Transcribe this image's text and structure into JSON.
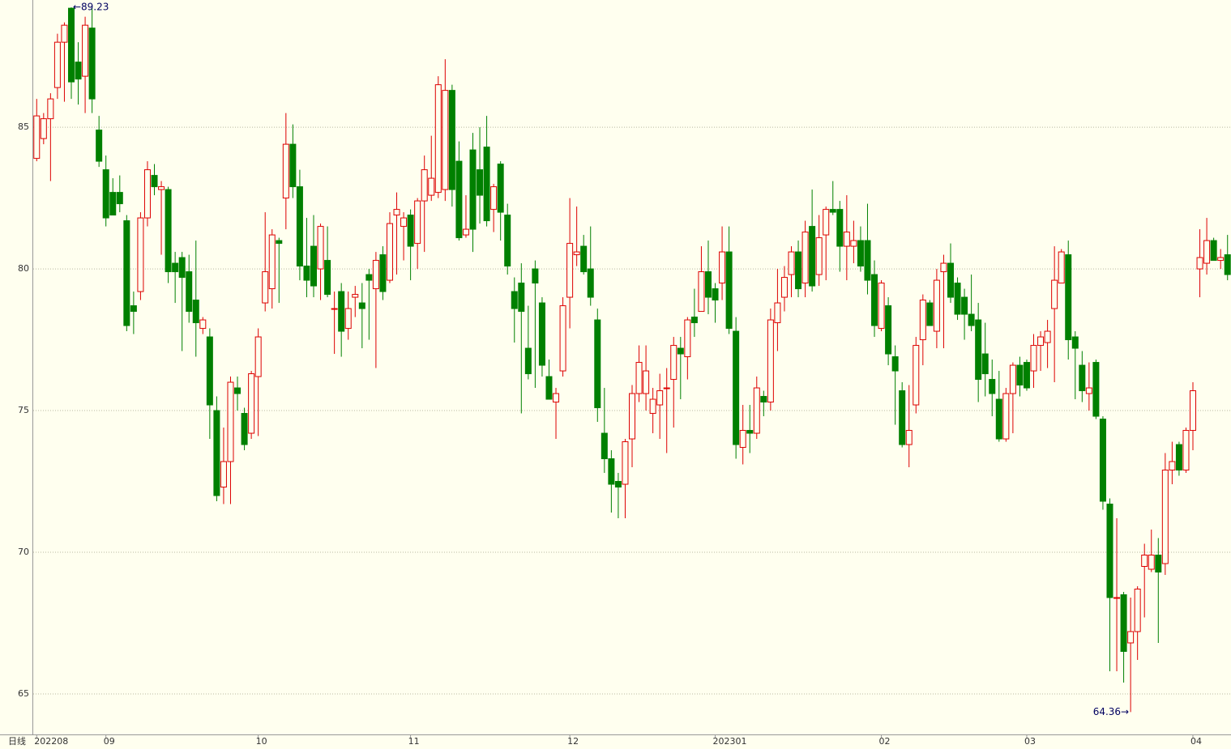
{
  "chart_data": {
    "type": "candlestick",
    "period_label": "日线",
    "up_color": "#dd0000",
    "down_color": "#008000",
    "background": "#ffffef",
    "grid": true,
    "ylim": [
      63.57,
      89.49
    ],
    "yticks": [
      65,
      70,
      75,
      80,
      85
    ],
    "x_labels": [
      {
        "index": 0,
        "label": "202208"
      },
      {
        "index": 10,
        "label": "09"
      },
      {
        "index": 32,
        "label": "10"
      },
      {
        "index": 54,
        "label": "11"
      },
      {
        "index": 77,
        "label": "12"
      },
      {
        "index": 98,
        "label": "202301"
      },
      {
        "index": 122,
        "label": "02"
      },
      {
        "index": 143,
        "label": "03"
      },
      {
        "index": 167,
        "label": "04"
      }
    ],
    "annotations": [
      {
        "index": 5,
        "value": 89.23,
        "label": "←89.23",
        "side": "right"
      },
      {
        "index": 158,
        "value": 64.36,
        "label": "64.36→",
        "side": "left"
      }
    ],
    "candles": [
      {
        "o": 83.9,
        "h": 86.0,
        "l": 83.8,
        "c": 85.4
      },
      {
        "o": 84.6,
        "h": 85.5,
        "l": 84.4,
        "c": 85.3
      },
      {
        "o": 85.3,
        "h": 86.2,
        "l": 83.1,
        "c": 86.0
      },
      {
        "o": 86.4,
        "h": 88.3,
        "l": 86.0,
        "c": 88.0
      },
      {
        "o": 88.0,
        "h": 88.7,
        "l": 85.9,
        "c": 88.6
      },
      {
        "o": 89.2,
        "h": 89.23,
        "l": 86.0,
        "c": 86.6
      },
      {
        "o": 87.3,
        "h": 88.0,
        "l": 85.8,
        "c": 86.7
      },
      {
        "o": 86.8,
        "h": 88.9,
        "l": 85.5,
        "c": 88.6
      },
      {
        "o": 88.5,
        "h": 89.2,
        "l": 85.5,
        "c": 86.0
      },
      {
        "o": 84.9,
        "h": 85.4,
        "l": 83.6,
        "c": 83.8
      },
      {
        "o": 83.5,
        "h": 84.0,
        "l": 81.5,
        "c": 81.8
      },
      {
        "o": 82.7,
        "h": 83.2,
        "l": 81.9,
        "c": 81.9
      },
      {
        "o": 82.7,
        "h": 83.3,
        "l": 82.0,
        "c": 82.3
      },
      {
        "o": 81.7,
        "h": 81.9,
        "l": 77.8,
        "c": 78.0
      },
      {
        "o": 78.7,
        "h": 79.2,
        "l": 77.7,
        "c": 78.5
      },
      {
        "o": 79.2,
        "h": 82.0,
        "l": 78.9,
        "c": 81.8
      },
      {
        "o": 81.8,
        "h": 83.8,
        "l": 81.5,
        "c": 83.5
      },
      {
        "o": 83.3,
        "h": 83.7,
        "l": 82.6,
        "c": 82.9
      },
      {
        "o": 82.8,
        "h": 83.1,
        "l": 80.5,
        "c": 82.9
      },
      {
        "o": 82.8,
        "h": 82.9,
        "l": 79.5,
        "c": 79.9
      },
      {
        "o": 80.2,
        "h": 80.6,
        "l": 78.8,
        "c": 79.9
      },
      {
        "o": 80.4,
        "h": 80.6,
        "l": 77.1,
        "c": 79.7
      },
      {
        "o": 79.9,
        "h": 80.5,
        "l": 78.1,
        "c": 78.5
      },
      {
        "o": 78.9,
        "h": 81.0,
        "l": 76.9,
        "c": 78.1
      },
      {
        "o": 77.9,
        "h": 78.3,
        "l": 77.7,
        "c": 78.2
      },
      {
        "o": 77.6,
        "h": 77.9,
        "l": 74.0,
        "c": 75.2
      },
      {
        "o": 75.0,
        "h": 75.5,
        "l": 71.8,
        "c": 72.0
      },
      {
        "o": 72.3,
        "h": 74.4,
        "l": 71.7,
        "c": 73.2
      },
      {
        "o": 73.2,
        "h": 76.2,
        "l": 71.7,
        "c": 76.0
      },
      {
        "o": 75.8,
        "h": 76.2,
        "l": 75.0,
        "c": 75.6
      },
      {
        "o": 74.9,
        "h": 75.1,
        "l": 73.6,
        "c": 73.8
      },
      {
        "o": 74.2,
        "h": 76.4,
        "l": 74.0,
        "c": 76.3
      },
      {
        "o": 76.2,
        "h": 77.9,
        "l": 74.1,
        "c": 77.6
      },
      {
        "o": 78.8,
        "h": 82.0,
        "l": 78.5,
        "c": 79.9
      },
      {
        "o": 79.3,
        "h": 81.4,
        "l": 78.6,
        "c": 81.2
      },
      {
        "o": 81.0,
        "h": 81.1,
        "l": 78.8,
        "c": 80.9
      },
      {
        "o": 82.5,
        "h": 85.5,
        "l": 81.4,
        "c": 84.4
      },
      {
        "o": 84.4,
        "h": 85.1,
        "l": 82.5,
        "c": 82.9
      },
      {
        "o": 82.9,
        "h": 83.5,
        "l": 79.6,
        "c": 80.1
      },
      {
        "o": 80.1,
        "h": 81.8,
        "l": 79.0,
        "c": 79.6
      },
      {
        "o": 80.8,
        "h": 81.9,
        "l": 79.0,
        "c": 79.4
      },
      {
        "o": 80.0,
        "h": 81.6,
        "l": 78.9,
        "c": 81.5
      },
      {
        "o": 80.3,
        "h": 81.5,
        "l": 79.0,
        "c": 79.1
      },
      {
        "o": 78.6,
        "h": 79.2,
        "l": 77.0,
        "c": 78.6
      },
      {
        "o": 79.2,
        "h": 79.5,
        "l": 76.9,
        "c": 77.8
      },
      {
        "o": 77.9,
        "h": 79.2,
        "l": 77.5,
        "c": 78.6
      },
      {
        "o": 79.0,
        "h": 79.4,
        "l": 78.3,
        "c": 79.1
      },
      {
        "o": 78.8,
        "h": 79.5,
        "l": 77.2,
        "c": 78.6
      },
      {
        "o": 79.8,
        "h": 80.0,
        "l": 77.5,
        "c": 79.6
      },
      {
        "o": 79.3,
        "h": 80.6,
        "l": 76.5,
        "c": 80.3
      },
      {
        "o": 80.5,
        "h": 80.8,
        "l": 78.9,
        "c": 79.2
      },
      {
        "o": 79.6,
        "h": 82.0,
        "l": 79.5,
        "c": 81.6
      },
      {
        "o": 81.9,
        "h": 82.7,
        "l": 79.8,
        "c": 82.1
      },
      {
        "o": 81.5,
        "h": 82.0,
        "l": 80.3,
        "c": 81.8
      },
      {
        "o": 81.9,
        "h": 82.1,
        "l": 79.6,
        "c": 80.8
      },
      {
        "o": 80.9,
        "h": 82.5,
        "l": 80.0,
        "c": 82.4
      },
      {
        "o": 82.4,
        "h": 84.0,
        "l": 80.6,
        "c": 83.5
      },
      {
        "o": 82.6,
        "h": 84.7,
        "l": 82.4,
        "c": 83.2
      },
      {
        "o": 82.7,
        "h": 86.8,
        "l": 82.5,
        "c": 86.5
      },
      {
        "o": 82.8,
        "h": 87.4,
        "l": 82.4,
        "c": 86.3
      },
      {
        "o": 86.3,
        "h": 86.5,
        "l": 82.2,
        "c": 82.8
      },
      {
        "o": 83.8,
        "h": 84.5,
        "l": 81.0,
        "c": 81.1
      },
      {
        "o": 81.2,
        "h": 82.6,
        "l": 81.1,
        "c": 81.4
      },
      {
        "o": 84.2,
        "h": 84.8,
        "l": 80.6,
        "c": 81.4
      },
      {
        "o": 83.5,
        "h": 85.0,
        "l": 81.6,
        "c": 82.6
      },
      {
        "o": 84.3,
        "h": 85.4,
        "l": 81.5,
        "c": 81.7
      },
      {
        "o": 82.1,
        "h": 83.0,
        "l": 81.3,
        "c": 82.9
      },
      {
        "o": 83.7,
        "h": 83.8,
        "l": 81.0,
        "c": 82.0
      },
      {
        "o": 81.9,
        "h": 82.3,
        "l": 79.8,
        "c": 80.1
      },
      {
        "o": 79.2,
        "h": 79.7,
        "l": 77.4,
        "c": 78.6
      },
      {
        "o": 79.5,
        "h": 80.2,
        "l": 74.9,
        "c": 78.5
      },
      {
        "o": 77.2,
        "h": 78.7,
        "l": 76.1,
        "c": 76.3
      },
      {
        "o": 80.0,
        "h": 80.3,
        "l": 75.8,
        "c": 79.5
      },
      {
        "o": 78.8,
        "h": 79.0,
        "l": 76.2,
        "c": 76.6
      },
      {
        "o": 76.2,
        "h": 76.8,
        "l": 75.4,
        "c": 75.4
      },
      {
        "o": 75.3,
        "h": 75.8,
        "l": 74.0,
        "c": 75.6
      },
      {
        "o": 76.4,
        "h": 79.0,
        "l": 76.2,
        "c": 78.7
      },
      {
        "o": 79.0,
        "h": 82.5,
        "l": 77.9,
        "c": 80.9
      },
      {
        "o": 80.5,
        "h": 82.2,
        "l": 80.1,
        "c": 80.6
      },
      {
        "o": 80.8,
        "h": 81.2,
        "l": 79.8,
        "c": 79.9
      },
      {
        "o": 80.0,
        "h": 81.5,
        "l": 78.7,
        "c": 79.0
      },
      {
        "o": 78.2,
        "h": 78.6,
        "l": 74.6,
        "c": 75.1
      },
      {
        "o": 74.2,
        "h": 75.8,
        "l": 72.8,
        "c": 73.3
      },
      {
        "o": 73.3,
        "h": 73.6,
        "l": 71.4,
        "c": 72.4
      },
      {
        "o": 72.5,
        "h": 72.8,
        "l": 71.2,
        "c": 72.3
      },
      {
        "o": 72.4,
        "h": 74.0,
        "l": 71.2,
        "c": 73.9
      },
      {
        "o": 74.0,
        "h": 75.9,
        "l": 73.0,
        "c": 75.6
      },
      {
        "o": 75.6,
        "h": 77.3,
        "l": 75.3,
        "c": 76.7
      },
      {
        "o": 75.6,
        "h": 77.3,
        "l": 75.0,
        "c": 76.4
      },
      {
        "o": 74.9,
        "h": 75.8,
        "l": 74.2,
        "c": 75.4
      },
      {
        "o": 75.2,
        "h": 76.3,
        "l": 74.0,
        "c": 75.7
      },
      {
        "o": 75.8,
        "h": 76.5,
        "l": 73.5,
        "c": 75.8
      },
      {
        "o": 76.1,
        "h": 77.6,
        "l": 74.4,
        "c": 77.3
      },
      {
        "o": 77.2,
        "h": 77.6,
        "l": 75.4,
        "c": 77.0
      },
      {
        "o": 76.9,
        "h": 78.3,
        "l": 76.1,
        "c": 78.2
      },
      {
        "o": 78.3,
        "h": 79.3,
        "l": 77.6,
        "c": 78.1
      },
      {
        "o": 78.5,
        "h": 80.8,
        "l": 78.5,
        "c": 79.9
      },
      {
        "o": 79.9,
        "h": 81.0,
        "l": 78.4,
        "c": 79.0
      },
      {
        "o": 79.3,
        "h": 79.5,
        "l": 78.1,
        "c": 78.9
      },
      {
        "o": 79.5,
        "h": 81.5,
        "l": 78.9,
        "c": 80.6
      },
      {
        "o": 80.6,
        "h": 81.5,
        "l": 77.7,
        "c": 77.9
      },
      {
        "o": 77.8,
        "h": 78.3,
        "l": 73.3,
        "c": 73.8
      },
      {
        "o": 73.7,
        "h": 75.2,
        "l": 73.1,
        "c": 74.3
      },
      {
        "o": 74.3,
        "h": 75.2,
        "l": 73.5,
        "c": 74.2
      },
      {
        "o": 74.2,
        "h": 76.2,
        "l": 74.0,
        "c": 75.8
      },
      {
        "o": 75.5,
        "h": 75.7,
        "l": 74.8,
        "c": 75.3
      },
      {
        "o": 75.3,
        "h": 78.6,
        "l": 75.0,
        "c": 78.2
      },
      {
        "o": 78.1,
        "h": 80.0,
        "l": 77.1,
        "c": 78.8
      },
      {
        "o": 79.0,
        "h": 80.1,
        "l": 78.5,
        "c": 79.7
      },
      {
        "o": 79.8,
        "h": 80.8,
        "l": 79.0,
        "c": 80.6
      },
      {
        "o": 80.6,
        "h": 81.0,
        "l": 79.0,
        "c": 79.3
      },
      {
        "o": 79.5,
        "h": 81.7,
        "l": 79.0,
        "c": 81.3
      },
      {
        "o": 81.5,
        "h": 82.8,
        "l": 79.2,
        "c": 79.4
      },
      {
        "o": 79.8,
        "h": 81.9,
        "l": 79.4,
        "c": 81.1
      },
      {
        "o": 81.2,
        "h": 82.2,
        "l": 79.6,
        "c": 82.1
      },
      {
        "o": 82.1,
        "h": 83.1,
        "l": 81.9,
        "c": 82.0
      },
      {
        "o": 82.1,
        "h": 82.4,
        "l": 79.9,
        "c": 80.8
      },
      {
        "o": 80.8,
        "h": 82.6,
        "l": 79.6,
        "c": 81.3
      },
      {
        "o": 80.8,
        "h": 81.7,
        "l": 80.2,
        "c": 81.0
      },
      {
        "o": 81.0,
        "h": 81.5,
        "l": 79.9,
        "c": 80.1
      },
      {
        "o": 81.0,
        "h": 82.3,
        "l": 79.1,
        "c": 79.6
      },
      {
        "o": 79.8,
        "h": 80.3,
        "l": 77.6,
        "c": 78.0
      },
      {
        "o": 77.9,
        "h": 79.6,
        "l": 77.8,
        "c": 79.5
      },
      {
        "o": 78.7,
        "h": 79.0,
        "l": 76.6,
        "c": 77.0
      },
      {
        "o": 76.9,
        "h": 77.3,
        "l": 74.5,
        "c": 76.4
      },
      {
        "o": 75.7,
        "h": 76.0,
        "l": 73.7,
        "c": 73.8
      },
      {
        "o": 73.8,
        "h": 75.9,
        "l": 73.0,
        "c": 74.3
      },
      {
        "o": 75.2,
        "h": 77.6,
        "l": 74.9,
        "c": 77.3
      },
      {
        "o": 77.5,
        "h": 79.1,
        "l": 76.6,
        "c": 78.9
      },
      {
        "o": 78.8,
        "h": 78.9,
        "l": 78.0,
        "c": 78.0
      },
      {
        "o": 77.8,
        "h": 80.0,
        "l": 77.2,
        "c": 79.6
      },
      {
        "o": 79.9,
        "h": 80.5,
        "l": 77.2,
        "c": 80.2
      },
      {
        "o": 80.2,
        "h": 80.9,
        "l": 78.8,
        "c": 79.0
      },
      {
        "o": 79.5,
        "h": 79.7,
        "l": 78.2,
        "c": 78.4
      },
      {
        "o": 79.0,
        "h": 79.3,
        "l": 77.5,
        "c": 78.4
      },
      {
        "o": 78.4,
        "h": 79.8,
        "l": 77.8,
        "c": 78.0
      },
      {
        "o": 78.2,
        "h": 78.8,
        "l": 75.3,
        "c": 76.1
      },
      {
        "o": 77.0,
        "h": 78.1,
        "l": 75.5,
        "c": 76.3
      },
      {
        "o": 76.1,
        "h": 76.8,
        "l": 74.8,
        "c": 75.6
      },
      {
        "o": 75.4,
        "h": 76.4,
        "l": 73.9,
        "c": 74.0
      },
      {
        "o": 74.0,
        "h": 75.8,
        "l": 73.9,
        "c": 75.6
      },
      {
        "o": 75.6,
        "h": 76.7,
        "l": 74.2,
        "c": 76.6
      },
      {
        "o": 76.6,
        "h": 76.9,
        "l": 75.5,
        "c": 75.9
      },
      {
        "o": 76.7,
        "h": 76.8,
        "l": 75.7,
        "c": 75.8
      },
      {
        "o": 76.4,
        "h": 77.7,
        "l": 75.8,
        "c": 77.3
      },
      {
        "o": 77.3,
        "h": 77.8,
        "l": 76.4,
        "c": 77.6
      },
      {
        "o": 77.4,
        "h": 78.2,
        "l": 76.5,
        "c": 77.8
      },
      {
        "o": 78.6,
        "h": 80.8,
        "l": 76.0,
        "c": 79.6
      },
      {
        "o": 79.5,
        "h": 80.7,
        "l": 79.5,
        "c": 80.6
      },
      {
        "o": 80.5,
        "h": 81.0,
        "l": 76.8,
        "c": 77.5
      },
      {
        "o": 77.6,
        "h": 77.8,
        "l": 75.4,
        "c": 77.2
      },
      {
        "o": 76.6,
        "h": 77.1,
        "l": 75.3,
        "c": 75.7
      },
      {
        "o": 75.6,
        "h": 76.7,
        "l": 75.0,
        "c": 75.8
      },
      {
        "o": 76.7,
        "h": 76.8,
        "l": 74.7,
        "c": 74.8
      },
      {
        "o": 74.7,
        "h": 74.8,
        "l": 71.5,
        "c": 71.8
      },
      {
        "o": 71.7,
        "h": 71.9,
        "l": 65.8,
        "c": 68.4
      },
      {
        "o": 68.4,
        "h": 71.2,
        "l": 65.8,
        "c": 68.4
      },
      {
        "o": 68.5,
        "h": 68.6,
        "l": 65.4,
        "c": 66.5
      },
      {
        "o": 66.8,
        "h": 68.4,
        "l": 64.36,
        "c": 67.2
      },
      {
        "o": 67.2,
        "h": 68.8,
        "l": 66.2,
        "c": 68.7
      },
      {
        "o": 69.5,
        "h": 70.3,
        "l": 67.7,
        "c": 69.9
      },
      {
        "o": 69.4,
        "h": 70.8,
        "l": 69.3,
        "c": 69.9
      },
      {
        "o": 69.9,
        "h": 70.5,
        "l": 66.8,
        "c": 69.3
      },
      {
        "o": 69.6,
        "h": 73.5,
        "l": 69.2,
        "c": 72.9
      },
      {
        "o": 72.9,
        "h": 73.9,
        "l": 72.4,
        "c": 73.2
      },
      {
        "o": 73.8,
        "h": 73.9,
        "l": 72.7,
        "c": 72.9
      },
      {
        "o": 72.9,
        "h": 74.4,
        "l": 72.8,
        "c": 74.3
      },
      {
        "o": 74.3,
        "h": 76.0,
        "l": 73.6,
        "c": 75.7
      },
      {
        "o": 80.0,
        "h": 81.4,
        "l": 79.0,
        "c": 80.4
      },
      {
        "o": 80.2,
        "h": 81.8,
        "l": 79.8,
        "c": 81.0
      },
      {
        "o": 81.0,
        "h": 81.1,
        "l": 80.3,
        "c": 80.3
      },
      {
        "o": 80.3,
        "h": 80.7,
        "l": 80.0,
        "c": 80.4
      },
      {
        "o": 80.5,
        "h": 81.2,
        "l": 79.6,
        "c": 79.8
      }
    ]
  }
}
